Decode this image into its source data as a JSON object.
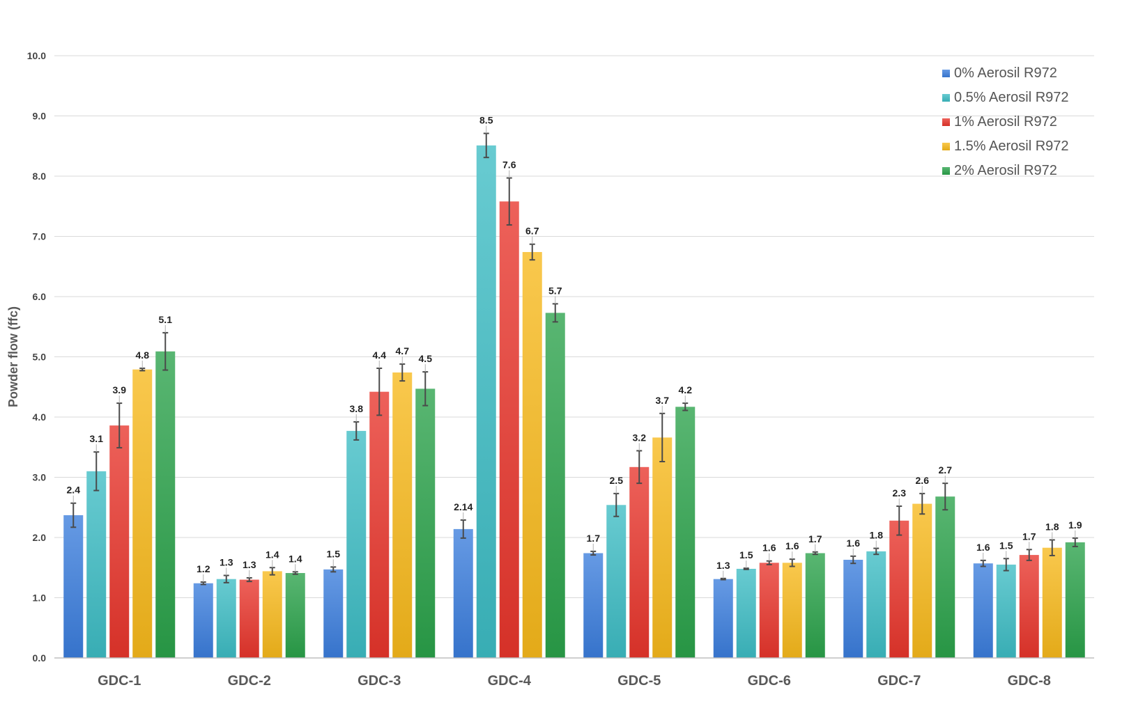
{
  "chart_data": {
    "type": "bar",
    "title": "",
    "xlabel": "",
    "ylabel": "Powder flow (ffc)",
    "ylim": [
      0,
      10
    ],
    "yticks": [
      "0.0",
      "1.0",
      "2.0",
      "3.0",
      "4.0",
      "5.0",
      "6.0",
      "7.0",
      "8.0",
      "9.0",
      "10.0"
    ],
    "grid": true,
    "legend_position": "top-right",
    "categories": [
      "GDC-1",
      "GDC-2",
      "GDC-3",
      "GDC-4",
      "GDC-5",
      "GDC-6",
      "GDC-7",
      "GDC-8"
    ],
    "series": [
      {
        "name": "0% Aerosil R972",
        "color": "#3b7ddd",
        "values": [
          2.37,
          1.24,
          1.47,
          2.14,
          1.74,
          1.31,
          1.63,
          1.57
        ],
        "errors": [
          0.2,
          0.02,
          0.04,
          0.15,
          0.03,
          0.01,
          0.06,
          0.05
        ],
        "labels": [
          "2.4",
          "1.2",
          "1.5",
          "2.14",
          "1.7",
          "1.3",
          "1.6",
          "1.6"
        ]
      },
      {
        "name": "0.5% Aerosil R972",
        "color": "#3dbcc4",
        "values": [
          3.1,
          1.31,
          3.77,
          8.51,
          2.54,
          1.48,
          1.77,
          1.55
        ],
        "errors": [
          0.32,
          0.06,
          0.15,
          0.2,
          0.19,
          0.01,
          0.05,
          0.1
        ],
        "labels": [
          "3.1",
          "1.3",
          "3.8",
          "8.5",
          "2.5",
          "1.5",
          "1.8",
          "1.5"
        ]
      },
      {
        "name": "1% Aerosil R972",
        "color": "#e8352c",
        "values": [
          3.86,
          1.3,
          4.42,
          7.58,
          3.17,
          1.58,
          2.28,
          1.71
        ],
        "errors": [
          0.37,
          0.03,
          0.39,
          0.39,
          0.27,
          0.03,
          0.24,
          0.09
        ],
        "labels": [
          "3.9",
          "1.3",
          "4.4",
          "7.6",
          "3.2",
          "1.6",
          "2.3",
          "1.7"
        ]
      },
      {
        "name": "1.5% Aerosil R972",
        "color": "#f7b91b",
        "values": [
          4.79,
          1.44,
          4.74,
          6.74,
          3.66,
          1.58,
          2.56,
          1.83
        ],
        "errors": [
          0.02,
          0.06,
          0.14,
          0.13,
          0.4,
          0.06,
          0.17,
          0.13
        ],
        "labels": [
          "4.8",
          "1.4",
          "4.7",
          "6.7",
          "3.7",
          "1.6",
          "2.6",
          "1.8"
        ]
      },
      {
        "name": "2% Aerosil R972",
        "color": "#2aa24a",
        "values": [
          5.09,
          1.41,
          4.47,
          5.73,
          4.17,
          1.74,
          2.68,
          1.92
        ],
        "errors": [
          0.31,
          0.02,
          0.28,
          0.15,
          0.06,
          0.02,
          0.22,
          0.07
        ],
        "labels": [
          "5.1",
          "1.4",
          "4.5",
          "5.7",
          "4.2",
          "1.7",
          "2.7",
          "1.9"
        ]
      }
    ]
  }
}
